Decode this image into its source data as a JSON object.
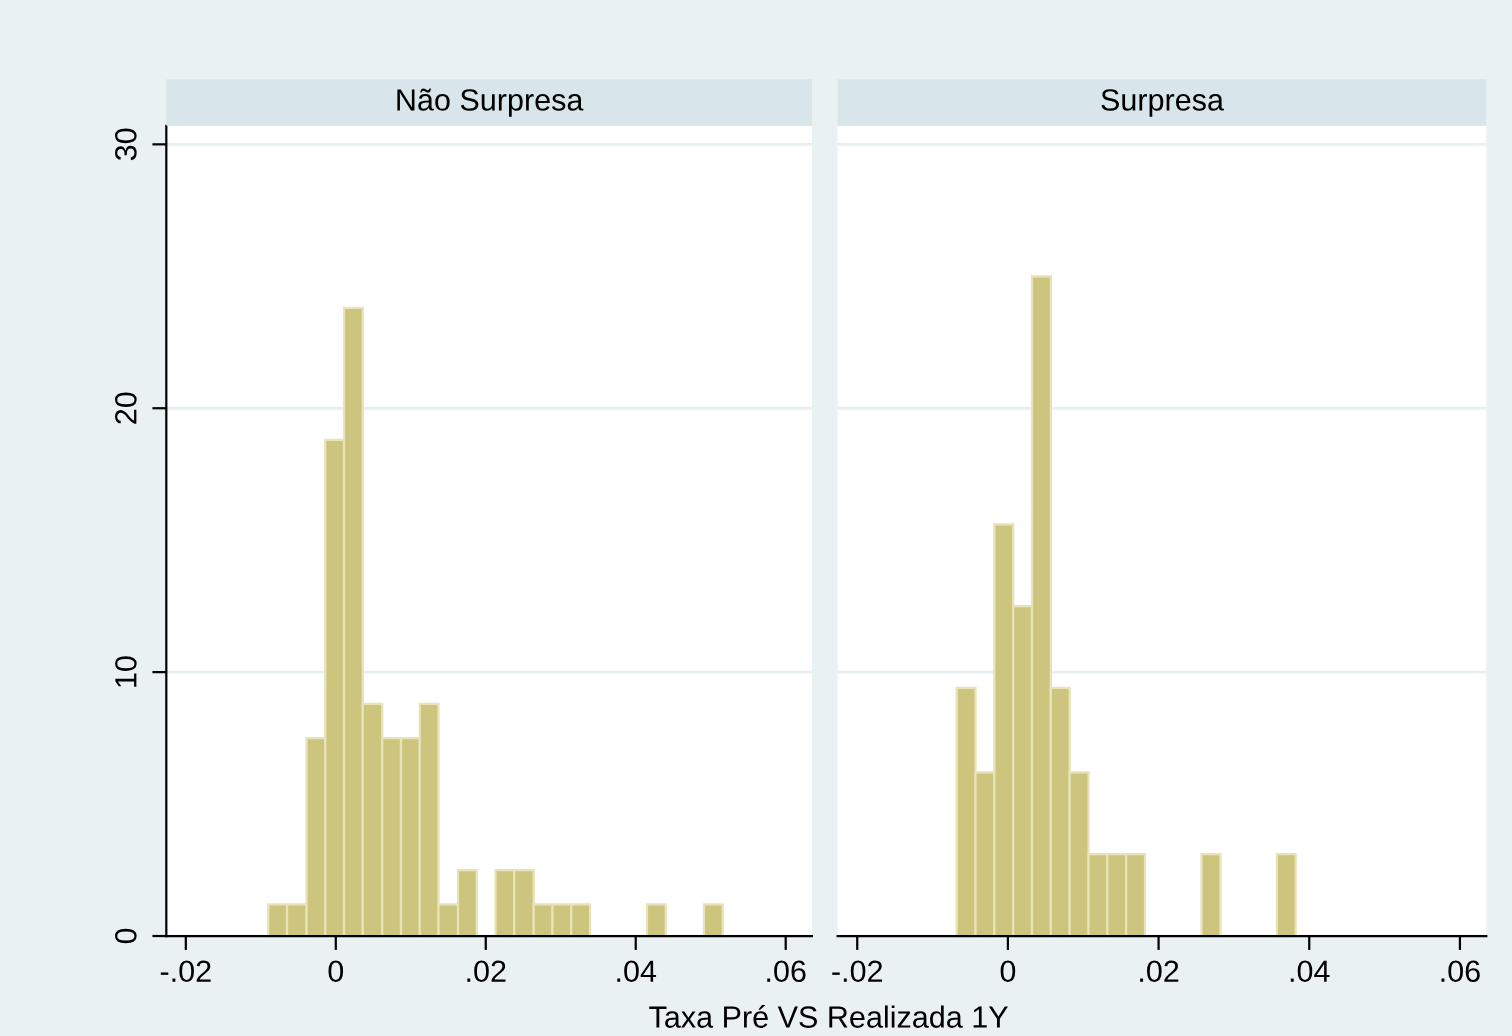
{
  "chart_data": [
    {
      "type": "histogram",
      "title": "Não Surpresa",
      "xlabel": "Taxa Pré VS Realizada 1Y",
      "bins": [
        -0.009,
        -0.0065,
        -0.0039,
        -0.0014,
        0.0011,
        0.0036,
        0.0062,
        0.0087,
        0.0112,
        0.0137,
        0.0163,
        0.0188,
        0.0213,
        0.0238,
        0.0264,
        0.0289,
        0.0314,
        0.0339,
        0.0415,
        0.044,
        0.0491,
        0.0516
      ],
      "values": [
        1.2,
        1.2,
        7.5,
        18.8,
        23.8,
        8.8,
        7.5,
        7.5,
        8.8,
        1.2,
        2.5,
        0,
        2.5,
        2.5,
        1.2,
        1.2,
        1.2,
        0,
        1.2,
        0,
        1.2
      ],
      "color": "#cdc47e",
      "xlim": [
        -0.0226,
        0.0635
      ],
      "ylim": [
        0,
        30.7
      ],
      "xticks": [
        {
          "value": -0.02,
          "label": "-.02"
        },
        0,
        {
          "value": 0.02,
          "label": ".02"
        },
        {
          "value": 0.04,
          "label": ".04"
        },
        {
          "value": 0.06,
          "label": ".06"
        }
      ],
      "yticks": [
        0,
        10,
        20,
        30
      ],
      "grid": "y"
    },
    {
      "type": "histogram",
      "title": "Surpresa",
      "bins": [
        -0.0068,
        -0.0043,
        -0.0018,
        0.0007,
        0.0032,
        0.0057,
        0.0082,
        0.0107,
        0.0132,
        0.0157,
        0.0182,
        0.0257,
        0.0282,
        0.0357,
        0.0382
      ],
      "values": [
        9.4,
        6.2,
        15.6,
        12.5,
        25,
        9.4,
        6.2,
        3.1,
        3.1,
        3.1,
        0,
        3.1,
        0,
        3.1
      ],
      "color": "#cdc47e",
      "xlim": [
        -0.0226,
        0.0635
      ],
      "ylim": [
        0,
        30.7
      ],
      "xticks": [
        {
          "value": -0.02,
          "label": "-.02"
        },
        0,
        {
          "value": 0.02,
          "label": ".02"
        },
        {
          "value": 0.04,
          "label": ".04"
        },
        {
          "value": 0.06,
          "label": ".06"
        }
      ],
      "yticks": [
        0,
        10,
        20,
        30
      ],
      "grid": "y",
      "tick_labels": "x"
    }
  ]
}
